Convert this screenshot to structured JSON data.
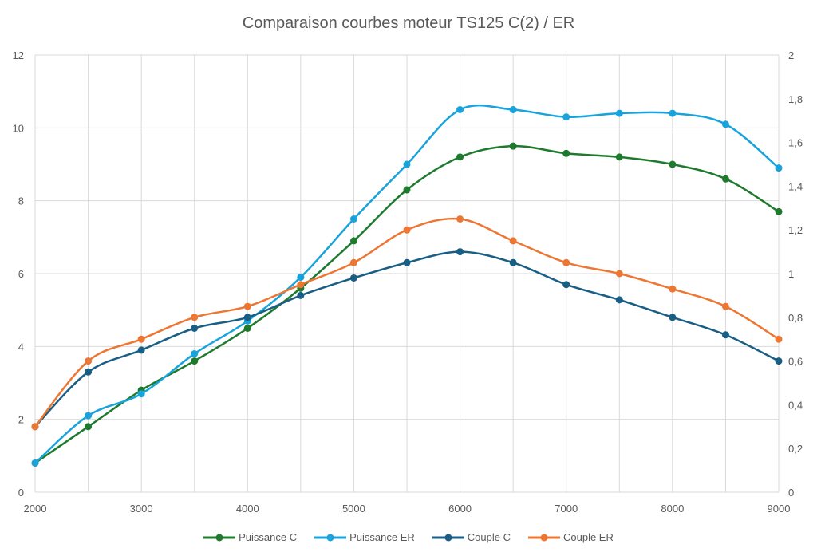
{
  "chart_data": {
    "type": "line",
    "title": "Comparaison courbes moteur TS125 C(2) / ER",
    "x": [
      2000,
      2500,
      3000,
      3500,
      4000,
      4500,
      5000,
      5500,
      6000,
      6500,
      7000,
      7500,
      8000,
      8500,
      9000
    ],
    "xlim": [
      2000,
      9000
    ],
    "xticks": [
      "2000",
      "3000",
      "4000",
      "5000",
      "6000",
      "7000",
      "8000",
      "9000"
    ],
    "ylim": [
      0,
      12
    ],
    "yticks": [
      "0",
      "2",
      "4",
      "6",
      "8",
      "10",
      "12"
    ],
    "y2lim": [
      0,
      2
    ],
    "y2ticks": [
      "0",
      "0,2",
      "0,4",
      "0,6",
      "0,8",
      "1",
      "1,2",
      "1,4",
      "1,6",
      "1,8",
      "2"
    ],
    "grid": true,
    "smooth": true,
    "legend_position": "bottom",
    "series": [
      {
        "name": "Puissance C",
        "axis": "left",
        "color": "#1e7b2e",
        "values": [
          0.8,
          1.8,
          2.8,
          3.6,
          4.5,
          5.6,
          6.9,
          8.3,
          9.2,
          9.5,
          9.3,
          9.2,
          9.0,
          8.6,
          7.7
        ]
      },
      {
        "name": "Puissance ER",
        "axis": "left",
        "color": "#18a3dc",
        "values": [
          0.8,
          2.1,
          2.7,
          3.8,
          4.7,
          5.9,
          7.5,
          9.0,
          10.5,
          10.5,
          10.3,
          10.4,
          10.4,
          10.1,
          8.9
        ]
      },
      {
        "name": "Couple C",
        "axis": "right",
        "color": "#195e84",
        "values": [
          0.3,
          0.55,
          0.65,
          0.75,
          0.8,
          0.9,
          0.98,
          1.05,
          1.1,
          1.05,
          0.95,
          0.88,
          0.8,
          0.72,
          0.6
        ]
      },
      {
        "name": "Couple ER",
        "axis": "right",
        "color": "#ee7633",
        "values": [
          0.3,
          0.6,
          0.7,
          0.8,
          0.85,
          0.95,
          1.05,
          1.2,
          1.25,
          1.15,
          1.05,
          1.0,
          0.93,
          0.85,
          0.7
        ]
      }
    ]
  }
}
